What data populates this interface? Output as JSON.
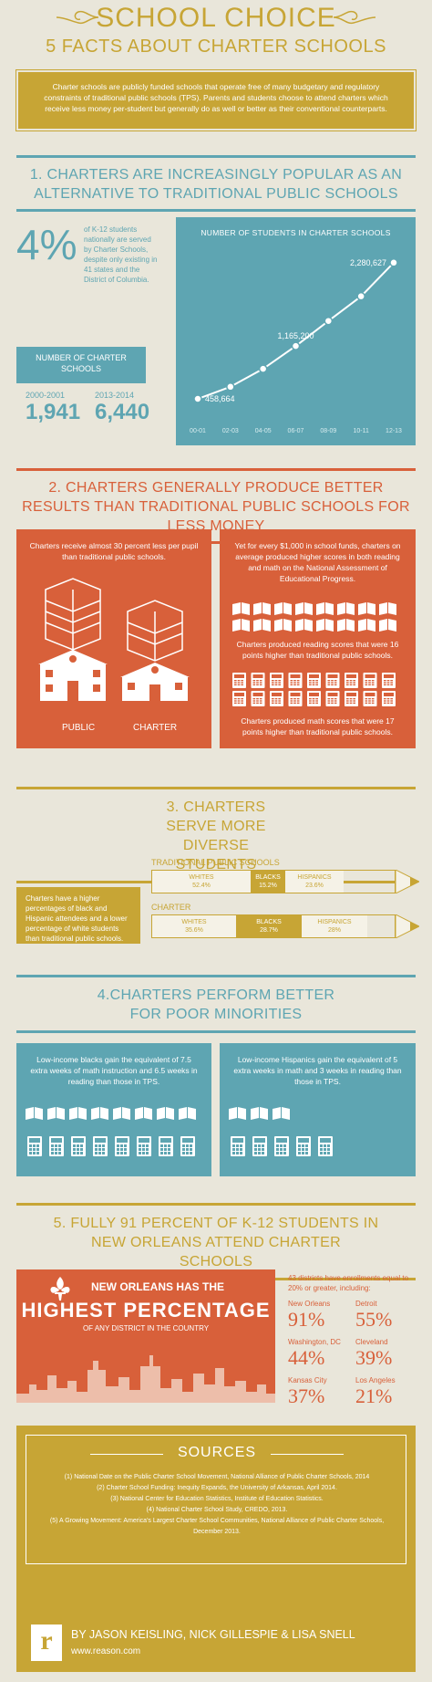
{
  "header": {
    "title": "SCHOOL CHOICE",
    "subtitle": "5 FACTS ABOUT CHARTER SCHOOLS",
    "intro": "Charter schools are publicly funded schools that operate free of many budgetary and regulatory constraints of traditional public schools (TPS). Parents and students choose to attend charters which receive less money per-student but generally do as well or better as their conventional counterparts."
  },
  "s1": {
    "heading": "1. CHARTERS ARE INCREASINGLY POPULAR AS AN ALTERNATIVE TO TRADITIONAL PUBLIC SCHOOLS",
    "pct": "4%",
    "pct_text": "of K-12 students nationally are served by Charter Schools, despite only existing in 41 states and the District of Columbia.",
    "box_label": "NUMBER OF CHARTER SCHOOLS",
    "year1": "2000-2001",
    "val1": "1,941",
    "year2": "2013-2014",
    "val2": "6,440"
  },
  "chart_data": {
    "type": "line",
    "title": "NUMBER OF STUDENTS IN CHARTER SCHOOLS",
    "categories": [
      "00-01",
      "02-03",
      "04-05",
      "06-07",
      "08-09",
      "10-11",
      "12-13"
    ],
    "values": [
      458664,
      620000,
      860000,
      1165200,
      1500000,
      1830000,
      2280627
    ],
    "labels": [
      "458,664",
      "",
      "",
      "1,165,200",
      "",
      "",
      "2,280,627"
    ],
    "ylim": [
      300000,
      2400000
    ],
    "grid": false
  },
  "s2": {
    "heading": "2. CHARTERS GENERALLY PRODUCE BETTER RESULTS THAN TRADITIONAL PUBLIC SCHOOLS FOR LESS MONEY",
    "left_text": "Charters receive almost 30 percent less per pupil than traditional public schools.",
    "label_public": "PUBLIC",
    "label_charter": "CHARTER",
    "right_text": "Yet for every $1,000 in school funds, charters on average produced higher scores in both reading and math on the National Assessment of Educational Progress.",
    "reading_text": "Charters produced reading scores that were 16 points higher than traditional public schools.",
    "math_text": "Charters produced math scores that were 17 points higher than traditional public schools."
  },
  "s3": {
    "heading": "3. CHARTERS SERVE MORE DIVERSE STUDENTS",
    "text": "Charters have a higher percentages of black and Hispanic attendees and a lower percentage of white students than traditional public schools.",
    "tps_label": "TRADITIONAL PUBLIC SCHOOLS",
    "tps": [
      {
        "name": "WHITES",
        "value": "52.4%"
      },
      {
        "name": "BLACKS",
        "value": "15.2%"
      },
      {
        "name": "HISPANICS",
        "value": "23.6%"
      }
    ],
    "charter_label": "CHARTER",
    "charter": [
      {
        "name": "WHITES",
        "value": "35.6%"
      },
      {
        "name": "BLACKS",
        "value": "28.7%"
      },
      {
        "name": "HISPANICS",
        "value": "28%"
      }
    ]
  },
  "s4": {
    "heading": "4.CHARTERS PERFORM BETTER FOR POOR MINORITIES",
    "left_text": "Low-income blacks gain the equivalent of 7.5 extra weeks of math instruction and 6.5 weeks in reading than those in TPS.",
    "right_text": "Low-income Hispanics gain the equivalent of 5 extra weeks in math and 3 weeks in reading than those in TPS."
  },
  "s5": {
    "heading": "5. FULLY 91 PERCENT OF K-12 STUDENTS IN NEW ORLEANS ATTEND CHARTER SCHOOLS",
    "banner_line1": "NEW ORLEANS HAS THE",
    "banner_line2": "HIGHEST PERCENTAGE",
    "banner_line3": "OF ANY DISTRICT IN THE COUNTRY",
    "intro": "43 districts have enrollments equal to 20% or greater, including:",
    "cities": [
      {
        "name": "New Orleans",
        "value": "91%"
      },
      {
        "name": "Detroit",
        "value": "55%"
      },
      {
        "name": "Washington, DC",
        "value": "44%"
      },
      {
        "name": "Cleveland",
        "value": "39%"
      },
      {
        "name": "Kansas City",
        "value": "37%"
      },
      {
        "name": "Los Angeles",
        "value": "21%"
      }
    ]
  },
  "sources": {
    "heading": "SOURCES",
    "items": [
      "(1) National Date on the Public Charter School Movement, National Alliance of Public Charter Schools, 2014",
      "(2) Charter School Funding: Inequity Expands, the University of Arkansas, April 2014.",
      "(3) National Center for Education Statistics, Institute of Education Statistics.",
      "(4) National Charter School Study, CREDO, 2013.",
      "(5) A Growing Movement: America's Largest Charter School Communities, National Alliance of Public Charter Schools, December 2013."
    ]
  },
  "footer": {
    "logo": "r",
    "authors": "BY JASON KEISLING, NICK GILLESPIE & LISA SNELL",
    "url": "www.reason.com"
  },
  "colors": {
    "gold": "#c7a535",
    "teal": "#5ea5b2",
    "orange": "#d8603a",
    "cream": "#e9e6da"
  }
}
